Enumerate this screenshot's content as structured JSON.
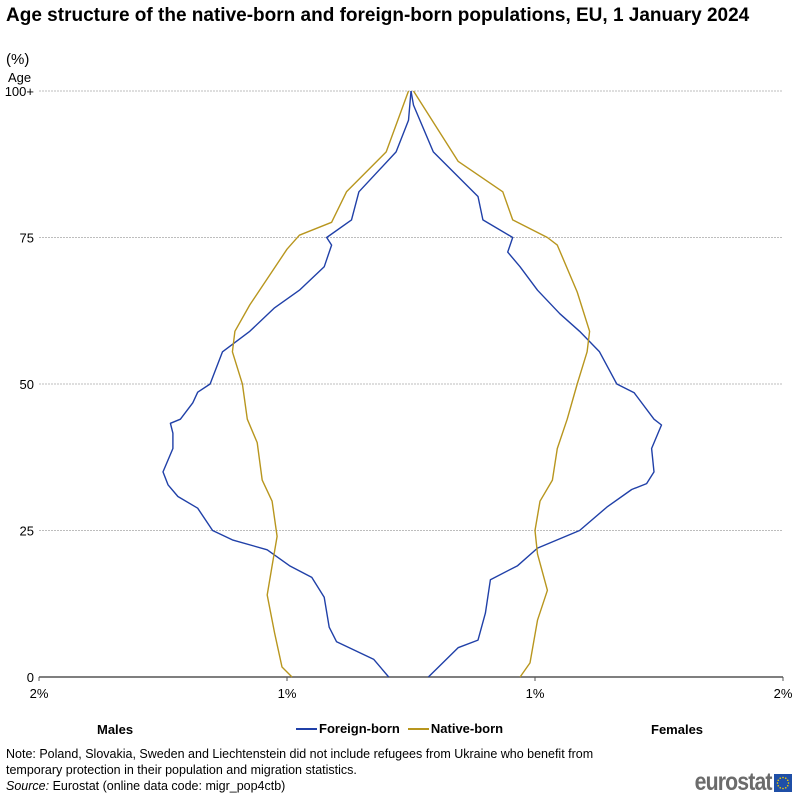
{
  "title": "Age structure of the native-born and foreign-born populations, EU, 1 January 2024",
  "unit": "(%)",
  "labels": {
    "males": "Males",
    "females": "Females"
  },
  "note": "Note: Poland, Slovakia, Sweden and Liechtenstein did not include refugees from Ukraine who benefit from temporary protection in their population and migration statistics.",
  "source": {
    "prefix": "Source:",
    "text": " Eurostat (online data code: migr_pop4ctb)"
  },
  "logo": {
    "text": "eurostat"
  },
  "chart_data": {
    "type": "line",
    "subtype": "population-pyramid",
    "title": "Age structure of the native-born and foreign-born populations, EU, 1 January 2024",
    "ylabel": "Age",
    "xlabel": "",
    "unit": "%",
    "ylim": [
      0,
      100
    ],
    "xlim": [
      -1.5,
      1.5
    ],
    "grid": true,
    "legend_position": "bottom",
    "yticks": [
      {
        "value": 0,
        "label": "0"
      },
      {
        "value": 25,
        "label": "25"
      },
      {
        "value": 50,
        "label": "50"
      },
      {
        "value": 75,
        "label": "75"
      },
      {
        "value": 100,
        "label": "100+"
      }
    ],
    "xticks": [
      {
        "value": -1.5,
        "label": "2%"
      },
      {
        "value": -0.5,
        "label": "1%"
      },
      {
        "value": 0.5,
        "label": "1%"
      },
      {
        "value": 1.5,
        "label": "2%"
      }
    ],
    "series": [
      {
        "name": "Foreign-born",
        "color": "#2040A8",
        "males": [
          [
            0,
            0.09
          ],
          [
            3,
            0.15
          ],
          [
            6,
            0.3
          ],
          [
            8.5,
            0.33
          ],
          [
            13.6,
            0.35
          ],
          [
            17,
            0.4
          ],
          [
            19,
            0.49
          ],
          [
            21.7,
            0.58
          ],
          [
            23.4,
            0.72
          ],
          [
            25,
            0.8
          ],
          [
            28.8,
            0.86
          ],
          [
            30.8,
            0.94
          ],
          [
            32.8,
            0.98
          ],
          [
            35,
            1.0
          ],
          [
            39,
            0.96
          ],
          [
            41.6,
            0.96
          ],
          [
            43.3,
            0.97
          ],
          [
            44,
            0.93
          ],
          [
            46.8,
            0.88
          ],
          [
            48.6,
            0.86
          ],
          [
            50,
            0.81
          ],
          [
            55.5,
            0.76
          ],
          [
            59,
            0.65
          ],
          [
            63,
            0.55
          ],
          [
            66,
            0.45
          ],
          [
            70,
            0.35
          ],
          [
            73.7,
            0.32
          ],
          [
            75,
            0.34
          ],
          [
            78,
            0.24
          ],
          [
            82.8,
            0.21
          ],
          [
            89.6,
            0.06
          ],
          [
            95,
            0.01
          ],
          [
            100,
            0.0
          ]
        ],
        "females": [
          [
            0,
            0.07
          ],
          [
            5,
            0.19
          ],
          [
            6.3,
            0.27
          ],
          [
            10.9,
            0.3
          ],
          [
            16.6,
            0.32
          ],
          [
            19,
            0.43
          ],
          [
            22,
            0.51
          ],
          [
            25,
            0.68
          ],
          [
            29,
            0.79
          ],
          [
            32,
            0.89
          ],
          [
            33,
            0.95
          ],
          [
            35,
            0.98
          ],
          [
            39,
            0.97
          ],
          [
            42,
            1.0
          ],
          [
            43,
            1.01
          ],
          [
            44,
            0.98
          ],
          [
            48.5,
            0.9
          ],
          [
            50,
            0.83
          ],
          [
            55.5,
            0.76
          ],
          [
            59,
            0.68
          ],
          [
            62,
            0.6
          ],
          [
            66,
            0.51
          ],
          [
            70,
            0.44
          ],
          [
            72.5,
            0.39
          ],
          [
            75,
            0.41
          ],
          [
            78,
            0.29
          ],
          [
            82,
            0.27
          ],
          [
            89.6,
            0.09
          ],
          [
            97.6,
            0.01
          ],
          [
            100,
            0.0
          ]
        ]
      },
      {
        "name": "Native-born",
        "color": "#B8961E",
        "males": [
          [
            0,
            0.48
          ],
          [
            1.7,
            0.52
          ],
          [
            7.5,
            0.55
          ],
          [
            14,
            0.58
          ],
          [
            19,
            0.56
          ],
          [
            24,
            0.54
          ],
          [
            30,
            0.56
          ],
          [
            33.6,
            0.6
          ],
          [
            40,
            0.62
          ],
          [
            44,
            0.66
          ],
          [
            50,
            0.68
          ],
          [
            55.5,
            0.72
          ],
          [
            59,
            0.71
          ],
          [
            63.5,
            0.65
          ],
          [
            73,
            0.5
          ],
          [
            75.4,
            0.45
          ],
          [
            77.6,
            0.32
          ],
          [
            82.8,
            0.26
          ],
          [
            89.6,
            0.1
          ],
          [
            100,
            0.01
          ]
        ],
        "females": [
          [
            0,
            0.44
          ],
          [
            2.4,
            0.48
          ],
          [
            9.7,
            0.51
          ],
          [
            14.8,
            0.55
          ],
          [
            21,
            0.51
          ],
          [
            25,
            0.5
          ],
          [
            30,
            0.52
          ],
          [
            33.6,
            0.57
          ],
          [
            39,
            0.59
          ],
          [
            44,
            0.63
          ],
          [
            50,
            0.67
          ],
          [
            55.5,
            0.71
          ],
          [
            59,
            0.72
          ],
          [
            65.7,
            0.67
          ],
          [
            73.7,
            0.59
          ],
          [
            75,
            0.55
          ],
          [
            78,
            0.41
          ],
          [
            82.8,
            0.37
          ],
          [
            88,
            0.19
          ],
          [
            100,
            0.01
          ]
        ]
      }
    ]
  }
}
